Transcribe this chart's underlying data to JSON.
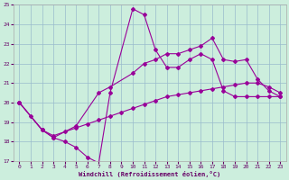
{
  "xlabel": "Windchill (Refroidissement éolien,°C)",
  "bg_color": "#cceedd",
  "line_color": "#990099",
  "grid_color": "#99bbcc",
  "xlim": [
    -0.5,
    23.5
  ],
  "ylim": [
    17,
    25
  ],
  "xticks": [
    0,
    1,
    2,
    3,
    4,
    5,
    6,
    7,
    8,
    9,
    10,
    11,
    12,
    13,
    14,
    15,
    16,
    17,
    18,
    19,
    20,
    21,
    22,
    23
  ],
  "yticks": [
    17,
    18,
    19,
    20,
    21,
    22,
    23,
    24,
    25
  ],
  "series": [
    {
      "x": [
        0,
        1,
        2,
        3,
        4,
        5,
        6,
        7,
        8,
        10,
        11,
        12,
        13,
        14,
        15,
        16,
        17,
        18,
        19,
        20,
        21,
        22,
        23
      ],
      "y": [
        20.0,
        19.3,
        18.6,
        18.2,
        18.0,
        17.7,
        17.2,
        16.9,
        20.5,
        24.8,
        24.5,
        22.7,
        21.8,
        21.8,
        22.2,
        22.5,
        22.2,
        20.6,
        20.3,
        20.3,
        20.3,
        20.3,
        20.3
      ]
    },
    {
      "x": [
        0,
        2,
        3,
        5,
        7,
        8,
        10,
        11,
        12,
        13,
        14,
        15,
        16,
        17,
        18,
        19,
        20,
        21,
        22,
        23
      ],
      "y": [
        20.0,
        18.6,
        18.2,
        18.8,
        20.5,
        20.8,
        21.5,
        22.0,
        22.2,
        22.5,
        22.5,
        22.7,
        22.9,
        23.3,
        22.2,
        22.1,
        22.2,
        21.2,
        20.6,
        20.3
      ]
    },
    {
      "x": [
        0,
        2,
        3,
        4,
        5,
        6,
        7,
        8,
        9,
        10,
        11,
        12,
        13,
        14,
        15,
        16,
        17,
        18,
        19,
        20,
        21,
        22,
        23
      ],
      "y": [
        20.0,
        18.6,
        18.3,
        18.5,
        18.7,
        18.9,
        19.1,
        19.3,
        19.5,
        19.7,
        19.9,
        20.1,
        20.3,
        20.4,
        20.5,
        20.6,
        20.7,
        20.8,
        20.9,
        21.0,
        21.0,
        20.8,
        20.5
      ]
    }
  ]
}
